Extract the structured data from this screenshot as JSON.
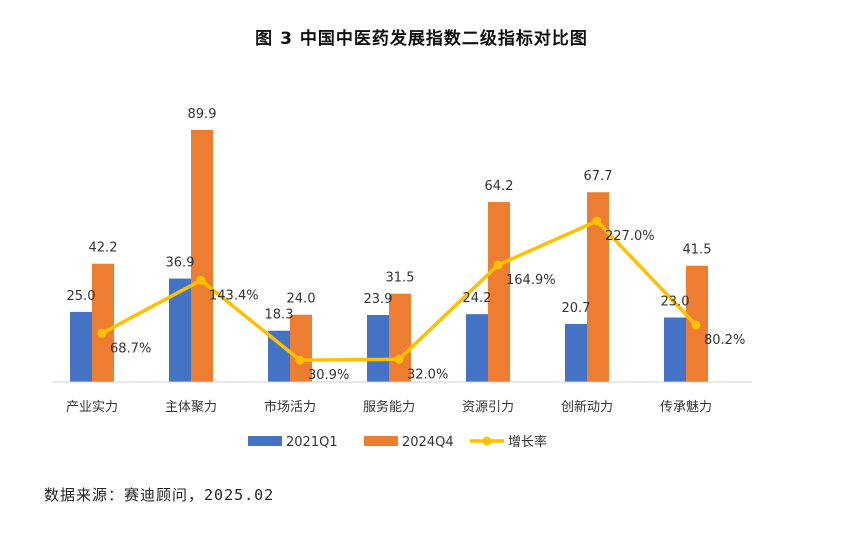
{
  "chart_data": {
    "type": "bar",
    "title": "图 3 中国中医药发展指数二级指标对比图",
    "categories": [
      "产业实力",
      "主体聚力",
      "市场活力",
      "服务能力",
      "资源引力",
      "创新动力",
      "传承魅力"
    ],
    "series": [
      {
        "name": "2021Q1",
        "kind": "bar",
        "color": "#4472C4",
        "values": [
          25.0,
          36.9,
          18.3,
          23.9,
          24.2,
          20.7,
          23.0
        ]
      },
      {
        "name": "2024Q4",
        "kind": "bar",
        "color": "#ED7D31",
        "values": [
          42.2,
          89.9,
          24.0,
          31.5,
          64.2,
          67.7,
          41.5
        ]
      },
      {
        "name": "增长率",
        "kind": "line",
        "color": "#FFC000",
        "values": [
          68.7,
          143.4,
          30.9,
          32.0,
          164.9,
          227.0,
          80.2
        ],
        "value_suffix": "%"
      }
    ],
    "bar_ylim": [
      0,
      90
    ],
    "line_ylim": [
      0,
      300
    ],
    "grid": false,
    "legend_position": "bottom"
  },
  "source": "数据来源：赛迪顾问，2025.02"
}
